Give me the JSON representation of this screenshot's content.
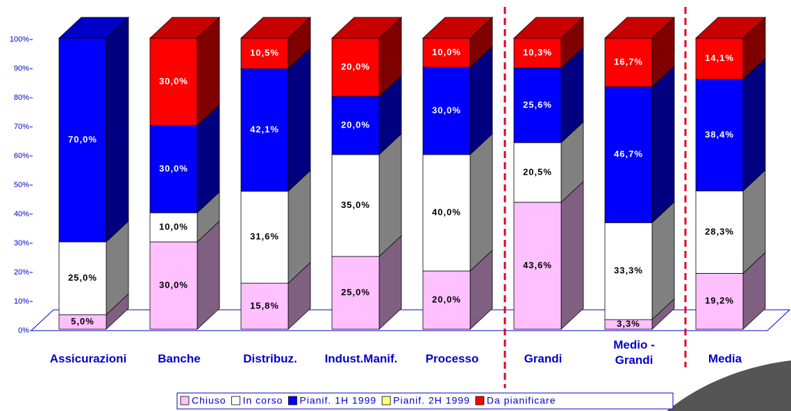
{
  "chart_data": {
    "type": "bar3d_stacked",
    "categories": [
      "Assicurazioni",
      "Banche",
      "Distribuz.",
      "Indust.Manif.",
      "Processo",
      "Grandi",
      "Medio -\nGrandi",
      "Media"
    ],
    "series": [
      {
        "name": "Chiuso",
        "color": "#ffc0ff",
        "values": [
          5,
          30,
          15.8,
          25,
          20,
          43.6,
          3.3,
          19.2
        ],
        "value_labels": [
          "5,0%",
          "30,0%",
          "15,8%",
          "25,0%",
          "20,0%",
          "43,6%",
          "3,3%",
          "19,2%"
        ]
      },
      {
        "name": "In corso",
        "color": "#ffffff",
        "values": [
          25,
          10,
          31.6,
          35,
          40,
          20.5,
          33.3,
          28.3
        ],
        "value_labels": [
          "25,0%",
          "10,0%",
          "31,6%",
          "35,0%",
          "40,0%",
          "20,5%",
          "33,3%",
          "28,3%"
        ]
      },
      {
        "name": "Pianif. 1H 1999",
        "color": "#0000ff",
        "values": [
          70,
          30,
          42.1,
          20,
          30,
          25.6,
          46.7,
          38.4
        ],
        "value_labels": [
          "70,0%",
          "30,0%",
          "42,1%",
          "20,0%",
          "30,0%",
          "25,6%",
          "46,7%",
          "38,4%"
        ]
      },
      {
        "name": "Pianif. 2H 1999",
        "color": "#ffff80",
        "values": [
          0,
          0,
          0,
          0,
          0,
          0,
          0,
          0
        ],
        "value_labels": [
          null,
          null,
          null,
          null,
          null,
          null,
          null,
          null
        ]
      },
      {
        "name": "Da pianificare",
        "color": "#ff0000",
        "values": [
          0,
          30,
          10.5,
          20,
          10,
          10.3,
          16.7,
          14.1
        ],
        "value_labels": [
          null,
          "30,0%",
          "10,5%",
          "20,0%",
          "10,0%",
          "10,3%",
          "16,7%",
          "14,1%"
        ]
      }
    ],
    "ylim": [
      0,
      100
    ],
    "yticks": [
      {
        "value": 0,
        "label": "0%"
      },
      {
        "value": 10,
        "label": "10%"
      },
      {
        "value": 20,
        "label": "20%"
      },
      {
        "value": 30,
        "label": "30%"
      },
      {
        "value": 40,
        "label": "40%"
      },
      {
        "value": 50,
        "label": "50%"
      },
      {
        "value": 60,
        "label": "60%"
      },
      {
        "value": 70,
        "label": "70%"
      },
      {
        "value": 80,
        "label": "80%"
      },
      {
        "value": 90,
        "label": "90%"
      },
      {
        "value": 100,
        "label": "100%"
      }
    ],
    "legend": "bottom"
  }
}
